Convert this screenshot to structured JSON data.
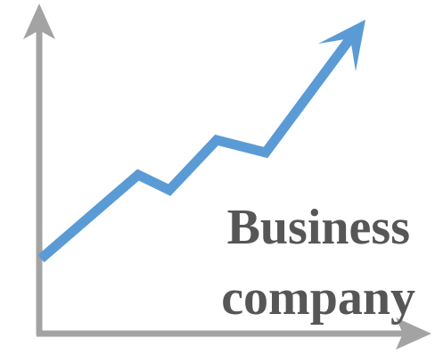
{
  "logo": {
    "line1": "Business",
    "line2": "company"
  },
  "colors": {
    "axis": "#a3a3a3",
    "trend": "#5b9bd5",
    "text": "#565656",
    "background": "#ffffff"
  }
}
